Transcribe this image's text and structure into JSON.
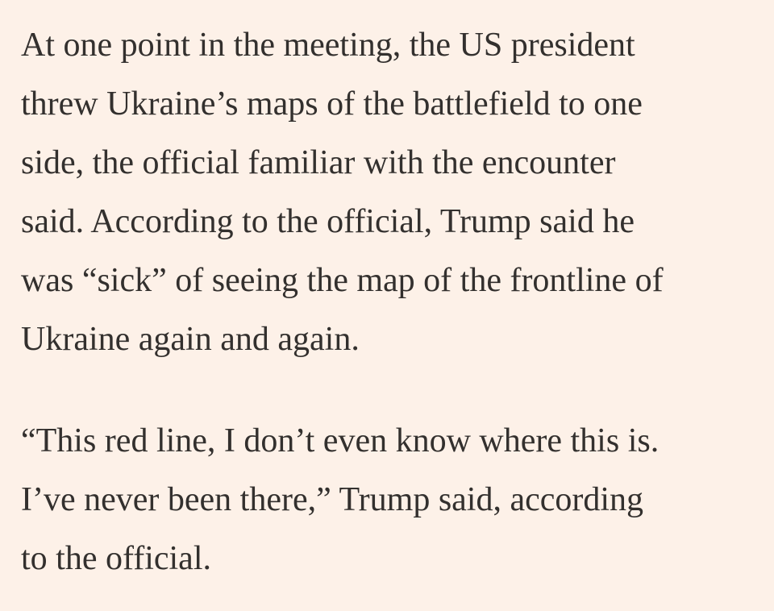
{
  "article": {
    "paragraphs": [
      {
        "lines": [
          "At one point in the meeting, the US president",
          "threw Ukraine’s maps of the battlefield to one",
          "side, the official familiar with the encounter",
          "said. According to the official, Trump said he",
          "was “sick” of seeing the map of the frontline of",
          "Ukraine again and again."
        ]
      },
      {
        "lines": [
          "“This red line, I don’t even know where this is.",
          "I’ve never been there,” Trump said, according",
          "to the official."
        ]
      }
    ]
  }
}
